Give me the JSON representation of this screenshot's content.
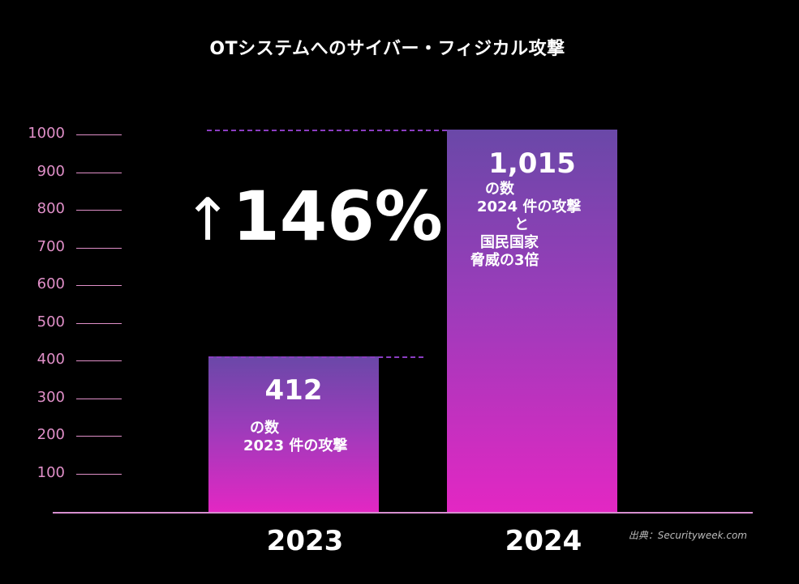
{
  "chart_data": {
    "type": "bar",
    "title": "OTシステムへのサイバー・フィジカル攻撃",
    "categories": [
      "2023",
      "2024"
    ],
    "values": [
      412,
      1015
    ],
    "value_labels": [
      "412",
      "1,015"
    ],
    "bar_notes": [
      [
        "の数",
        "2023 件の攻撃"
      ],
      [
        "の数",
        "2024 件の攻撃",
        "と",
        "国民国家",
        "脅威の3倍"
      ]
    ],
    "ylim": [
      0,
      1000
    ],
    "yticks": [
      "1000",
      "900",
      "800",
      "700",
      "600",
      "500",
      "400",
      "300",
      "200",
      "100"
    ],
    "change_label": "146%",
    "change_arrow": "↑",
    "source": "出典：Securityweek.com",
    "colors": {
      "bar_top": "#6a48a8",
      "bar_bottom": "#e327c3",
      "axis": "#e08fc8",
      "dash": "#8b3dc2"
    }
  }
}
